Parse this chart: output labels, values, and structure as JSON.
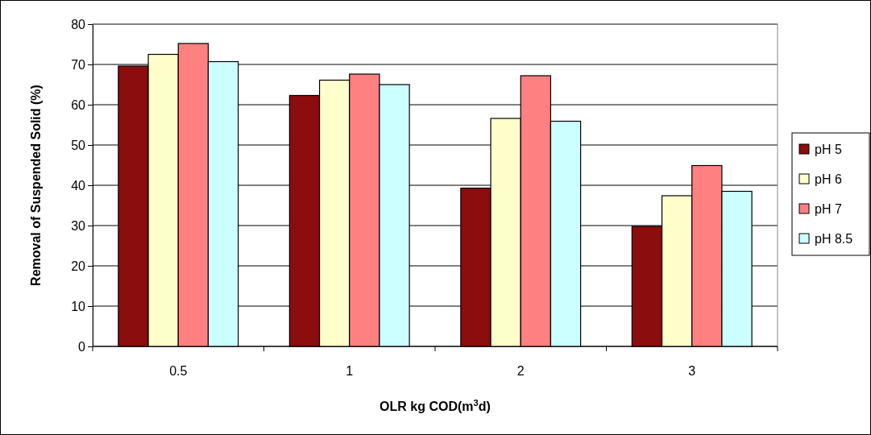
{
  "chart_data": {
    "type": "bar",
    "xlabel": "OLR kg COD(m$^{3}$d)",
    "ylabel": "Removal of Suspended Solid (%)",
    "categories": [
      "0.5",
      "1",
      "2",
      "3"
    ],
    "series": [
      {
        "name": "pH 5",
        "color": "#8b0d0d",
        "values": [
          69.6,
          62.3,
          39.3,
          29.8
        ]
      },
      {
        "name": "pH 6",
        "color": "#ffffcc",
        "values": [
          72.5,
          66.1,
          56.6,
          37.4
        ]
      },
      {
        "name": "pH 7",
        "color": "#ff8080",
        "values": [
          75.2,
          67.6,
          67.2,
          44.9
        ]
      },
      {
        "name": "pH 8.5",
        "color": "#ccffff",
        "values": [
          70.7,
          65.0,
          55.9,
          38.5
        ]
      }
    ],
    "ylim": [
      0,
      80
    ],
    "yticks": [
      0,
      10,
      20,
      30,
      40,
      50,
      60,
      70,
      80
    ],
    "grid": "y",
    "legend": "right"
  }
}
